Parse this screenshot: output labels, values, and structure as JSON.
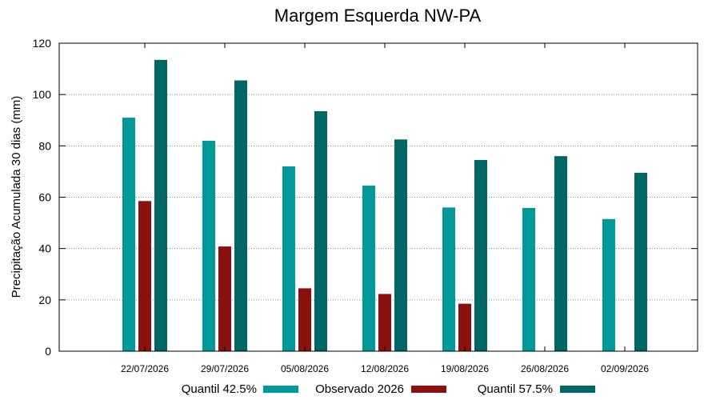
{
  "chart_data": {
    "type": "bar",
    "title": "Margem Esquerda NW-PA",
    "xlabel": "",
    "ylabel": "Precipitação Acumulada 30 dias (mm)",
    "ylim": [
      0,
      120
    ],
    "yticks": [
      0,
      20,
      40,
      60,
      80,
      100,
      120
    ],
    "grid": true,
    "legend_position": "bottom",
    "categories": [
      "22/07/2026",
      "29/07/2026",
      "05/08/2026",
      "12/08/2026",
      "19/08/2026",
      "26/08/2026",
      "02/09/2026"
    ],
    "series": [
      {
        "name": "Quantil 42.5%",
        "color": "#009999",
        "values": [
          91,
          82,
          72,
          64.5,
          56,
          55.8,
          51.5
        ]
      },
      {
        "name": "Observado 2026",
        "color": "#8b1010",
        "values": [
          58.5,
          40.8,
          24.5,
          22.3,
          18.5,
          null,
          null
        ]
      },
      {
        "name": "Quantil 57.5%",
        "color": "#006666",
        "values": [
          113.5,
          105.5,
          93.5,
          82.5,
          74.5,
          76,
          69.5
        ]
      }
    ]
  }
}
